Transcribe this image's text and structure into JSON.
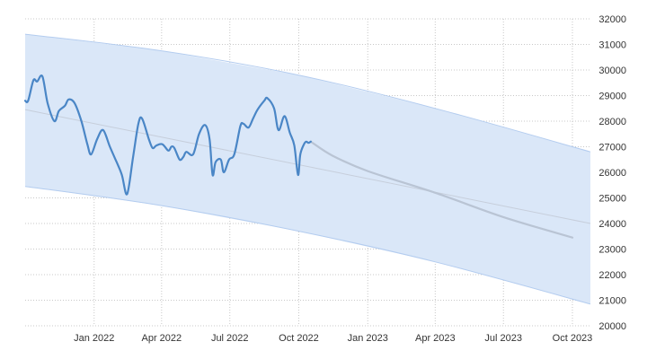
{
  "chart_data": {
    "type": "line",
    "title": "",
    "xlabel": "",
    "ylabel": "",
    "x_range": [
      "2021-10-01",
      "2023-10-25"
    ],
    "ylim": [
      20000,
      32000
    ],
    "y_ticks": [
      20000,
      21000,
      22000,
      23000,
      24000,
      25000,
      26000,
      27000,
      28000,
      29000,
      30000,
      31000,
      32000
    ],
    "x_ticks": [
      {
        "date": "2022-01-01",
        "label": "Jan 2022"
      },
      {
        "date": "2022-04-01",
        "label": "Apr 2022"
      },
      {
        "date": "2022-07-01",
        "label": "Jul 2022"
      },
      {
        "date": "2022-10-01",
        "label": "Oct 2022"
      },
      {
        "date": "2023-01-01",
        "label": "Jan 2023"
      },
      {
        "date": "2023-04-01",
        "label": "Apr 2023"
      },
      {
        "date": "2023-07-01",
        "label": "Jul 2023"
      },
      {
        "date": "2023-10-01",
        "label": "Oct 2023"
      }
    ],
    "grid": true,
    "y_axis_side": "right",
    "colors": {
      "actual": "#4a86c6",
      "forecast": "#b9c4d4",
      "trend": "#c6cedb",
      "band": "#dae7f8",
      "band_edge": "#b3ccef",
      "grid": "#c8c8c8"
    },
    "series": [
      {
        "role": "actual",
        "points": [
          [
            "2021-10-01",
            28800
          ],
          [
            "2021-10-05",
            28800
          ],
          [
            "2021-10-12",
            29600
          ],
          [
            "2021-10-17",
            29550
          ],
          [
            "2021-10-24",
            29750
          ],
          [
            "2021-10-31",
            28700
          ],
          [
            "2021-11-09",
            28000
          ],
          [
            "2021-11-15",
            28400
          ],
          [
            "2021-11-23",
            28600
          ],
          [
            "2021-11-28",
            28850
          ],
          [
            "2021-12-06",
            28700
          ],
          [
            "2021-12-15",
            28000
          ],
          [
            "2021-12-23",
            27100
          ],
          [
            "2021-12-28",
            26700
          ],
          [
            "2022-01-05",
            27300
          ],
          [
            "2022-01-13",
            27650
          ],
          [
            "2022-01-22",
            27000
          ],
          [
            "2022-01-31",
            26400
          ],
          [
            "2022-02-07",
            25900
          ],
          [
            "2022-02-14",
            25150
          ],
          [
            "2022-02-22",
            26600
          ],
          [
            "2022-03-01",
            27900
          ],
          [
            "2022-03-06",
            28100
          ],
          [
            "2022-03-15",
            27300
          ],
          [
            "2022-03-20",
            26950
          ],
          [
            "2022-03-25",
            27050
          ],
          [
            "2022-04-02",
            27100
          ],
          [
            "2022-04-10",
            26850
          ],
          [
            "2022-04-14",
            27000
          ],
          [
            "2022-04-18",
            26950
          ],
          [
            "2022-04-25",
            26500
          ],
          [
            "2022-04-30",
            26600
          ],
          [
            "2022-05-04",
            26800
          ],
          [
            "2022-05-13",
            26700
          ],
          [
            "2022-05-21",
            27500
          ],
          [
            "2022-05-29",
            27850
          ],
          [
            "2022-06-04",
            27300
          ],
          [
            "2022-06-08",
            25900
          ],
          [
            "2022-06-12",
            26400
          ],
          [
            "2022-06-19",
            26500
          ],
          [
            "2022-06-23",
            26000
          ],
          [
            "2022-06-30",
            26500
          ],
          [
            "2022-07-07",
            26700
          ],
          [
            "2022-07-15",
            27800
          ],
          [
            "2022-07-19",
            27900
          ],
          [
            "2022-07-26",
            27750
          ],
          [
            "2022-08-01",
            28100
          ],
          [
            "2022-08-07",
            28450
          ],
          [
            "2022-08-16",
            28800
          ],
          [
            "2022-08-20",
            28900
          ],
          [
            "2022-08-29",
            28500
          ],
          [
            "2022-09-04",
            27650
          ],
          [
            "2022-09-12",
            28200
          ],
          [
            "2022-09-19",
            27550
          ],
          [
            "2022-09-25",
            27050
          ],
          [
            "2022-09-30",
            25900
          ],
          [
            "2022-10-03",
            26700
          ],
          [
            "2022-10-08",
            27100
          ],
          [
            "2022-10-11",
            27200
          ],
          [
            "2022-10-14",
            27150
          ],
          [
            "2022-10-17",
            27200
          ]
        ]
      },
      {
        "role": "forecast",
        "points": [
          [
            "2022-10-17",
            27200
          ],
          [
            "2022-11-15",
            26650
          ],
          [
            "2023-01-01",
            26050
          ],
          [
            "2023-04-01",
            25200
          ],
          [
            "2023-07-01",
            24250
          ],
          [
            "2023-10-01",
            23450
          ]
        ]
      },
      {
        "role": "trend",
        "points": [
          [
            "2021-10-01",
            28450
          ],
          [
            "2023-10-25",
            24000
          ]
        ]
      },
      {
        "role": "band-upper",
        "points": [
          [
            "2021-10-01",
            31400
          ],
          [
            "2022-04-01",
            30750
          ],
          [
            "2022-10-01",
            29800
          ],
          [
            "2023-04-01",
            28500
          ],
          [
            "2023-10-25",
            26800
          ]
        ]
      },
      {
        "role": "band-lower",
        "points": [
          [
            "2021-10-01",
            25450
          ],
          [
            "2022-04-01",
            24700
          ],
          [
            "2022-10-01",
            23700
          ],
          [
            "2023-04-01",
            22500
          ],
          [
            "2023-10-25",
            20850
          ]
        ]
      }
    ]
  }
}
